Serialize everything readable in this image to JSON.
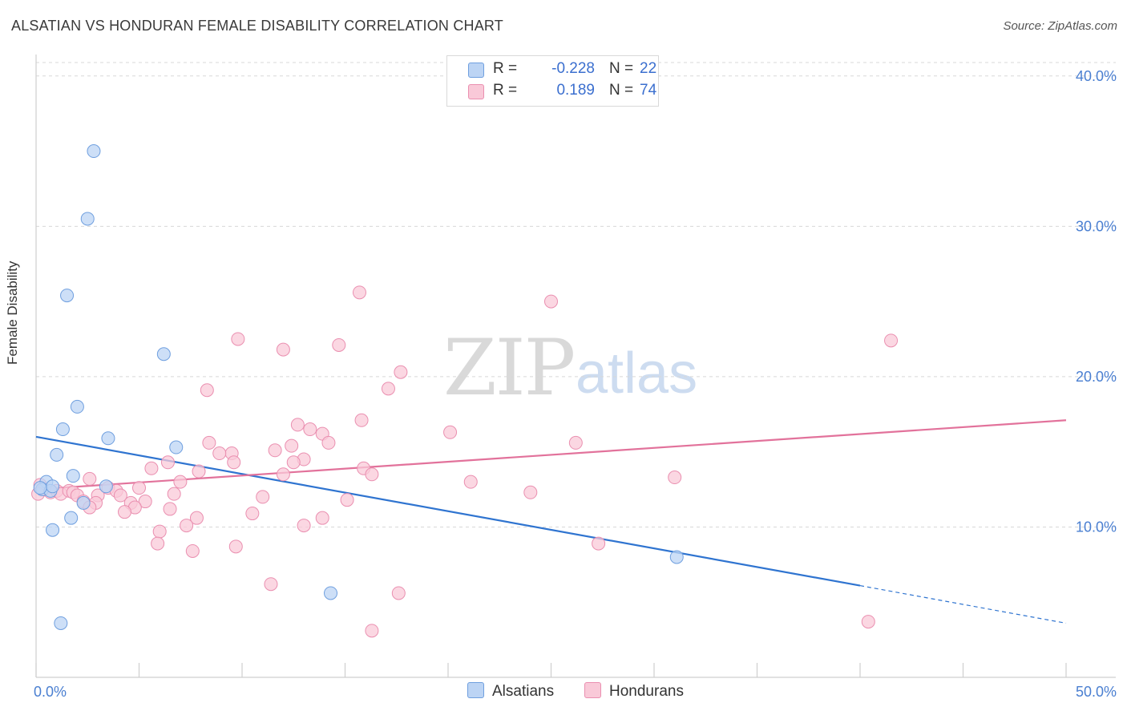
{
  "title": "ALSATIAN VS HONDURAN FEMALE DISABILITY CORRELATION CHART",
  "source": "Source: ZipAtlas.com",
  "watermark": {
    "zip": "ZIP",
    "atlas": "atlas"
  },
  "legend": {
    "rows": [
      {
        "r_label": "R =",
        "r_value": "-0.228",
        "n_label": "N =",
        "n_value": "22"
      },
      {
        "r_label": "R =",
        "r_value": "0.189",
        "n_label": "N =",
        "n_value": "74"
      }
    ]
  },
  "bottom_legend": {
    "alsatians": "Alsatians",
    "hondurans": "Hondurans"
  },
  "colors": {
    "alsatian_fill": "#bcd4f4",
    "alsatian_stroke": "#6f9fdf",
    "alsatian_line": "#2f74d0",
    "honduran_fill": "#f9c9d8",
    "honduran_stroke": "#ea8fb0",
    "honduran_line": "#e2729b",
    "grid": "#d8d8d8",
    "tick_text": "#4a7fd1"
  },
  "chart_data": {
    "type": "scatter",
    "title": "ALSATIAN VS HONDURAN FEMALE DISABILITY CORRELATION CHART",
    "xlabel": "",
    "ylabel": "Female Disability",
    "xlim": [
      0,
      50
    ],
    "ylim": [
      0,
      41
    ],
    "x_tick_labels": [
      "0.0%",
      "50.0%"
    ],
    "y_ticks": [
      10,
      20,
      30,
      40
    ],
    "y_tick_labels": [
      "10.0%",
      "20.0%",
      "30.0%",
      "40.0%"
    ],
    "series": [
      {
        "name": "Alsatians",
        "r": -0.228,
        "n": 22,
        "trend": {
          "x0": 0,
          "y0": 16.0,
          "x1": 40,
          "y1": 6.1,
          "dash_to_x": 50,
          "dash_to_y": 3.6
        },
        "points": [
          [
            2.8,
            35.0
          ],
          [
            2.5,
            30.5
          ],
          [
            1.5,
            25.4
          ],
          [
            6.2,
            21.5
          ],
          [
            2.0,
            18.0
          ],
          [
            1.3,
            16.5
          ],
          [
            3.5,
            15.9
          ],
          [
            6.8,
            15.3
          ],
          [
            1.0,
            14.8
          ],
          [
            1.8,
            13.4
          ],
          [
            0.5,
            13.0
          ],
          [
            0.3,
            12.5
          ],
          [
            0.7,
            12.4
          ],
          [
            0.8,
            12.7
          ],
          [
            3.4,
            12.7
          ],
          [
            2.3,
            11.6
          ],
          [
            1.7,
            10.6
          ],
          [
            0.8,
            9.8
          ],
          [
            31.1,
            8.0
          ],
          [
            14.3,
            5.6
          ],
          [
            1.2,
            3.6
          ],
          [
            0.2,
            12.6
          ]
        ]
      },
      {
        "name": "Hondurans",
        "r": 0.189,
        "n": 74,
        "trend": {
          "x0": 0,
          "y0": 12.5,
          "x1": 50,
          "y1": 17.1
        },
        "points": [
          [
            15.7,
            25.6
          ],
          [
            25.0,
            25.0
          ],
          [
            41.5,
            22.4
          ],
          [
            9.8,
            22.5
          ],
          [
            14.7,
            22.1
          ],
          [
            12.0,
            21.8
          ],
          [
            17.7,
            20.3
          ],
          [
            17.1,
            19.2
          ],
          [
            8.3,
            19.1
          ],
          [
            15.8,
            17.1
          ],
          [
            12.7,
            16.8
          ],
          [
            13.3,
            16.5
          ],
          [
            13.9,
            16.2
          ],
          [
            20.1,
            16.3
          ],
          [
            8.4,
            15.6
          ],
          [
            14.2,
            15.6
          ],
          [
            26.2,
            15.6
          ],
          [
            11.6,
            15.1
          ],
          [
            12.4,
            15.4
          ],
          [
            9.5,
            14.9
          ],
          [
            8.9,
            14.9
          ],
          [
            13.0,
            14.5
          ],
          [
            9.6,
            14.3
          ],
          [
            12.5,
            14.3
          ],
          [
            6.4,
            14.3
          ],
          [
            5.6,
            13.9
          ],
          [
            15.9,
            13.9
          ],
          [
            16.3,
            13.5
          ],
          [
            7.9,
            13.7
          ],
          [
            12.0,
            13.5
          ],
          [
            2.6,
            13.2
          ],
          [
            31.0,
            13.3
          ],
          [
            21.1,
            13.0
          ],
          [
            7.0,
            13.0
          ],
          [
            0.2,
            12.8
          ],
          [
            0.4,
            12.5
          ],
          [
            0.7,
            12.3
          ],
          [
            1.0,
            12.4
          ],
          [
            1.2,
            12.2
          ],
          [
            1.6,
            12.4
          ],
          [
            1.8,
            12.3
          ],
          [
            2.0,
            12.1
          ],
          [
            3.0,
            12.1
          ],
          [
            3.5,
            12.6
          ],
          [
            3.9,
            12.4
          ],
          [
            4.1,
            12.1
          ],
          [
            5.0,
            12.6
          ],
          [
            6.7,
            12.2
          ],
          [
            24.0,
            12.3
          ],
          [
            11.0,
            12.0
          ],
          [
            2.3,
            11.7
          ],
          [
            2.9,
            11.6
          ],
          [
            4.6,
            11.6
          ],
          [
            5.3,
            11.7
          ],
          [
            4.8,
            11.3
          ],
          [
            2.6,
            11.3
          ],
          [
            6.5,
            11.2
          ],
          [
            15.1,
            11.8
          ],
          [
            4.3,
            11.0
          ],
          [
            10.5,
            10.9
          ],
          [
            7.8,
            10.6
          ],
          [
            13.9,
            10.6
          ],
          [
            7.3,
            10.1
          ],
          [
            13.0,
            10.1
          ],
          [
            6.0,
            9.7
          ],
          [
            5.9,
            8.9
          ],
          [
            9.7,
            8.7
          ],
          [
            7.6,
            8.4
          ],
          [
            27.3,
            8.9
          ],
          [
            11.4,
            6.2
          ],
          [
            17.6,
            5.6
          ],
          [
            40.4,
            3.7
          ],
          [
            16.3,
            3.1
          ],
          [
            0.1,
            12.2
          ]
        ]
      }
    ]
  }
}
